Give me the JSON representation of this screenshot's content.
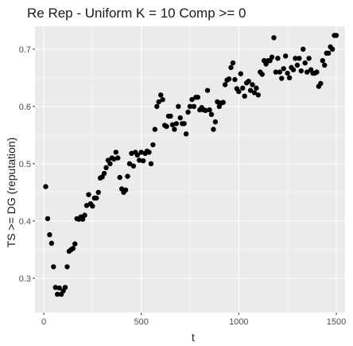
{
  "chart_data": {
    "type": "scatter",
    "title": "Re Rep - Uniform K = 10 Comp >= 0",
    "xlabel": "t",
    "ylabel": "TS  >=  DG (reputation)",
    "xlim": [
      -45,
      1545
    ],
    "ylim": [
      0.24,
      0.74
    ],
    "xticks": [
      0,
      500,
      1000,
      1500
    ],
    "yticks": [
      0.3,
      0.4,
      0.5,
      0.6,
      0.7
    ],
    "xtick_labels": [
      "0",
      "500",
      "1000",
      "1500"
    ],
    "ytick_labels": [
      "0.3",
      "0.4",
      "0.5",
      "0.6",
      "0.7"
    ],
    "grid": true,
    "legend": "none",
    "panel_color": "#ebebeb",
    "gridline_color": "#ffffff",
    "point_color": "#000000",
    "points": [
      [
        10,
        0.46
      ],
      [
        20,
        0.404
      ],
      [
        30,
        0.376
      ],
      [
        40,
        0.361
      ],
      [
        50,
        0.32
      ],
      [
        60,
        0.284
      ],
      [
        70,
        0.272
      ],
      [
        80,
        0.283
      ],
      [
        90,
        0.272
      ],
      [
        100,
        0.278
      ],
      [
        110,
        0.284
      ],
      [
        120,
        0.32
      ],
      [
        130,
        0.347
      ],
      [
        140,
        0.35
      ],
      [
        150,
        0.352
      ],
      [
        160,
        0.36
      ],
      [
        170,
        0.404
      ],
      [
        180,
        0.403
      ],
      [
        190,
        0.407
      ],
      [
        200,
        0.403
      ],
      [
        210,
        0.41
      ],
      [
        220,
        0.427
      ],
      [
        230,
        0.446
      ],
      [
        240,
        0.43
      ],
      [
        250,
        0.426
      ],
      [
        260,
        0.44
      ],
      [
        270,
        0.44
      ],
      [
        280,
        0.45
      ],
      [
        290,
        0.475
      ],
      [
        300,
        0.477
      ],
      [
        310,
        0.483
      ],
      [
        320,
        0.493
      ],
      [
        330,
        0.506
      ],
      [
        340,
        0.5
      ],
      [
        350,
        0.51
      ],
      [
        360,
        0.508
      ],
      [
        370,
        0.52
      ],
      [
        380,
        0.51
      ],
      [
        390,
        0.476
      ],
      [
        400,
        0.456
      ],
      [
        410,
        0.45
      ],
      [
        420,
        0.454
      ],
      [
        430,
        0.478
      ],
      [
        440,
        0.5
      ],
      [
        450,
        0.518
      ],
      [
        460,
        0.496
      ],
      [
        470,
        0.52
      ],
      [
        480,
        0.515
      ],
      [
        490,
        0.506
      ],
      [
        500,
        0.52
      ],
      [
        510,
        0.505
      ],
      [
        520,
        0.518
      ],
      [
        530,
        0.522
      ],
      [
        540,
        0.52
      ],
      [
        550,
        0.5
      ],
      [
        560,
        0.533
      ],
      [
        570,
        0.56
      ],
      [
        580,
        0.6
      ],
      [
        590,
        0.608
      ],
      [
        600,
        0.62
      ],
      [
        610,
        0.612
      ],
      [
        620,
        0.567
      ],
      [
        630,
        0.565
      ],
      [
        640,
        0.583
      ],
      [
        650,
        0.583
      ],
      [
        660,
        0.568
      ],
      [
        670,
        0.56
      ],
      [
        680,
        0.57
      ],
      [
        690,
        0.6
      ],
      [
        700,
        0.58
      ],
      [
        710,
        0.57
      ],
      [
        720,
        0.57
      ],
      [
        730,
        0.552
      ],
      [
        740,
        0.59
      ],
      [
        750,
        0.6
      ],
      [
        760,
        0.612
      ],
      [
        770,
        0.6
      ],
      [
        780,
        0.616
      ],
      [
        790,
        0.616
      ],
      [
        800,
        0.594
      ],
      [
        810,
        0.598
      ],
      [
        820,
        0.594
      ],
      [
        830,
        0.593
      ],
      [
        840,
        0.628
      ],
      [
        850,
        0.594
      ],
      [
        860,
        0.586
      ],
      [
        870,
        0.56
      ],
      [
        880,
        0.573
      ],
      [
        890,
        0.608
      ],
      [
        900,
        0.6
      ],
      [
        910,
        0.606
      ],
      [
        920,
        0.607
      ],
      [
        930,
        0.638
      ],
      [
        940,
        0.646
      ],
      [
        950,
        0.648
      ],
      [
        960,
        0.668
      ],
      [
        970,
        0.676
      ],
      [
        980,
        0.647
      ],
      [
        990,
        0.631
      ],
      [
        1000,
        0.626
      ],
      [
        1010,
        0.657
      ],
      [
        1020,
        0.632
      ],
      [
        1030,
        0.618
      ],
      [
        1040,
        0.641
      ],
      [
        1050,
        0.644
      ],
      [
        1060,
        0.628
      ],
      [
        1070,
        0.638
      ],
      [
        1080,
        0.624
      ],
      [
        1090,
        0.632
      ],
      [
        1100,
        0.62
      ],
      [
        1110,
        0.66
      ],
      [
        1120,
        0.656
      ],
      [
        1130,
        0.68
      ],
      [
        1140,
        0.674
      ],
      [
        1150,
        0.68
      ],
      [
        1160,
        0.68
      ],
      [
        1170,
        0.686
      ],
      [
        1180,
        0.72
      ],
      [
        1190,
        0.66
      ],
      [
        1200,
        0.684
      ],
      [
        1210,
        0.66
      ],
      [
        1220,
        0.649
      ],
      [
        1230,
        0.666
      ],
      [
        1240,
        0.688
      ],
      [
        1250,
        0.658
      ],
      [
        1260,
        0.65
      ],
      [
        1270,
        0.668
      ],
      [
        1280,
        0.664
      ],
      [
        1290,
        0.684
      ],
      [
        1300,
        0.672
      ],
      [
        1310,
        0.684
      ],
      [
        1320,
        0.662
      ],
      [
        1330,
        0.7
      ],
      [
        1340,
        0.676
      ],
      [
        1350,
        0.66
      ],
      [
        1360,
        0.684
      ],
      [
        1370,
        0.664
      ],
      [
        1380,
        0.658
      ],
      [
        1390,
        0.658
      ],
      [
        1400,
        0.66
      ],
      [
        1410,
        0.635
      ],
      [
        1420,
        0.64
      ],
      [
        1430,
        0.68
      ],
      [
        1440,
        0.672
      ],
      [
        1450,
        0.693
      ],
      [
        1460,
        0.693
      ],
      [
        1470,
        0.704
      ],
      [
        1480,
        0.7
      ],
      [
        1490,
        0.724
      ],
      [
        1500,
        0.724
      ]
    ]
  }
}
